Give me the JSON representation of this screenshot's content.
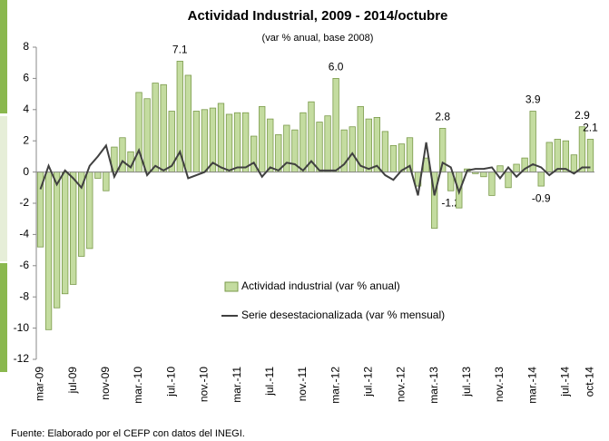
{
  "chart_data": {
    "type": "bar_line",
    "title": "Actividad Industrial, 2009 - 2014/octubre",
    "subtitle": "(var % anual, base 2008)",
    "source": "Fuente: Elaborado por el CEFP con datos del INEGI.",
    "categories": [
      "mar-09",
      null,
      null,
      null,
      "jul-09",
      null,
      null,
      null,
      "nov-09",
      null,
      null,
      null,
      "mar.-10",
      null,
      null,
      null,
      "jul.-10",
      null,
      null,
      null,
      "nov.-10",
      null,
      null,
      null,
      "mar.-11",
      null,
      null,
      null,
      "jul.-11",
      null,
      null,
      null,
      "nov.-11",
      null,
      null,
      null,
      "mar.-12",
      null,
      null,
      null,
      "jul.-12",
      null,
      null,
      null,
      "nov.-12",
      null,
      null,
      null,
      "mar.-13",
      null,
      null,
      null,
      "jul.-13",
      null,
      null,
      null,
      "nov.-13",
      null,
      null,
      null,
      "mar.-14",
      null,
      null,
      null,
      "jul.-14",
      null,
      null,
      "oct-14"
    ],
    "series": [
      {
        "name": "Actividad industrial (var % anual)",
        "kind": "bar",
        "color": "#c4dca0",
        "stroke": "#7a9a4a",
        "values": [
          -4.8,
          -10.1,
          -8.7,
          -7.8,
          -7.2,
          -5.4,
          -4.9,
          -0.4,
          -1.2,
          1.6,
          2.2,
          1.3,
          5.1,
          4.7,
          5.7,
          5.6,
          3.9,
          7.1,
          6.2,
          3.9,
          4.0,
          4.1,
          4.4,
          3.7,
          3.8,
          3.8,
          2.3,
          4.2,
          3.4,
          2.4,
          3.0,
          2.7,
          3.8,
          4.5,
          3.2,
          3.6,
          6.0,
          2.7,
          2.9,
          4.2,
          3.4,
          3.5,
          2.6,
          1.7,
          1.8,
          2.2,
          -0.9,
          0.9,
          -3.6,
          2.8,
          -1.2,
          -2.3,
          0.2,
          -0.1,
          -0.3,
          -1.5,
          0.4,
          -1.0,
          0.5,
          0.9,
          3.9,
          -0.9,
          1.9,
          2.1,
          2.0,
          1.1,
          2.9,
          2.1
        ],
        "value_labels": [
          null,
          null,
          null,
          null,
          null,
          null,
          null,
          null,
          null,
          null,
          null,
          null,
          null,
          null,
          null,
          null,
          null,
          "7.1",
          null,
          null,
          null,
          null,
          null,
          null,
          null,
          null,
          null,
          null,
          null,
          null,
          null,
          null,
          null,
          null,
          null,
          null,
          "6.0",
          null,
          null,
          null,
          null,
          null,
          null,
          null,
          null,
          null,
          null,
          null,
          null,
          "2.8",
          "-1.2",
          null,
          null,
          null,
          null,
          null,
          null,
          null,
          null,
          null,
          "3.9",
          "-0.9",
          null,
          null,
          null,
          null,
          "2.9",
          "2.1"
        ]
      },
      {
        "name": "Serie desestacionalizada  (var % mensual)",
        "kind": "line",
        "color": "#404040",
        "values": [
          -1.1,
          0.4,
          -0.8,
          0.1,
          -0.4,
          -1.0,
          0.4,
          1.0,
          1.7,
          -0.3,
          0.7,
          0.3,
          1.4,
          -0.2,
          0.4,
          0.1,
          0.4,
          1.3,
          -0.4,
          -0.2,
          0.0,
          0.6,
          0.3,
          0.1,
          0.3,
          0.3,
          0.6,
          -0.3,
          0.3,
          0.1,
          0.6,
          0.5,
          0.1,
          0.7,
          0.1,
          0.1,
          0.1,
          0.5,
          1.2,
          0.4,
          0.2,
          0.4,
          -0.2,
          -0.5,
          0.1,
          0.4,
          -1.5,
          1.9,
          -1.5,
          0.6,
          0.3,
          -1.3,
          0.1,
          0.2,
          0.2,
          0.3,
          -0.4,
          0.3,
          -0.3,
          0.2,
          0.5,
          0.3,
          -0.2,
          0.2,
          0.2,
          -0.1,
          0.3,
          0.3
        ]
      }
    ],
    "ylim": [
      -12,
      8
    ],
    "yticks": [
      -12,
      -10,
      -8,
      -6,
      -4,
      -2,
      0,
      2,
      4,
      6,
      8
    ],
    "legend": "center",
    "grid": false
  }
}
